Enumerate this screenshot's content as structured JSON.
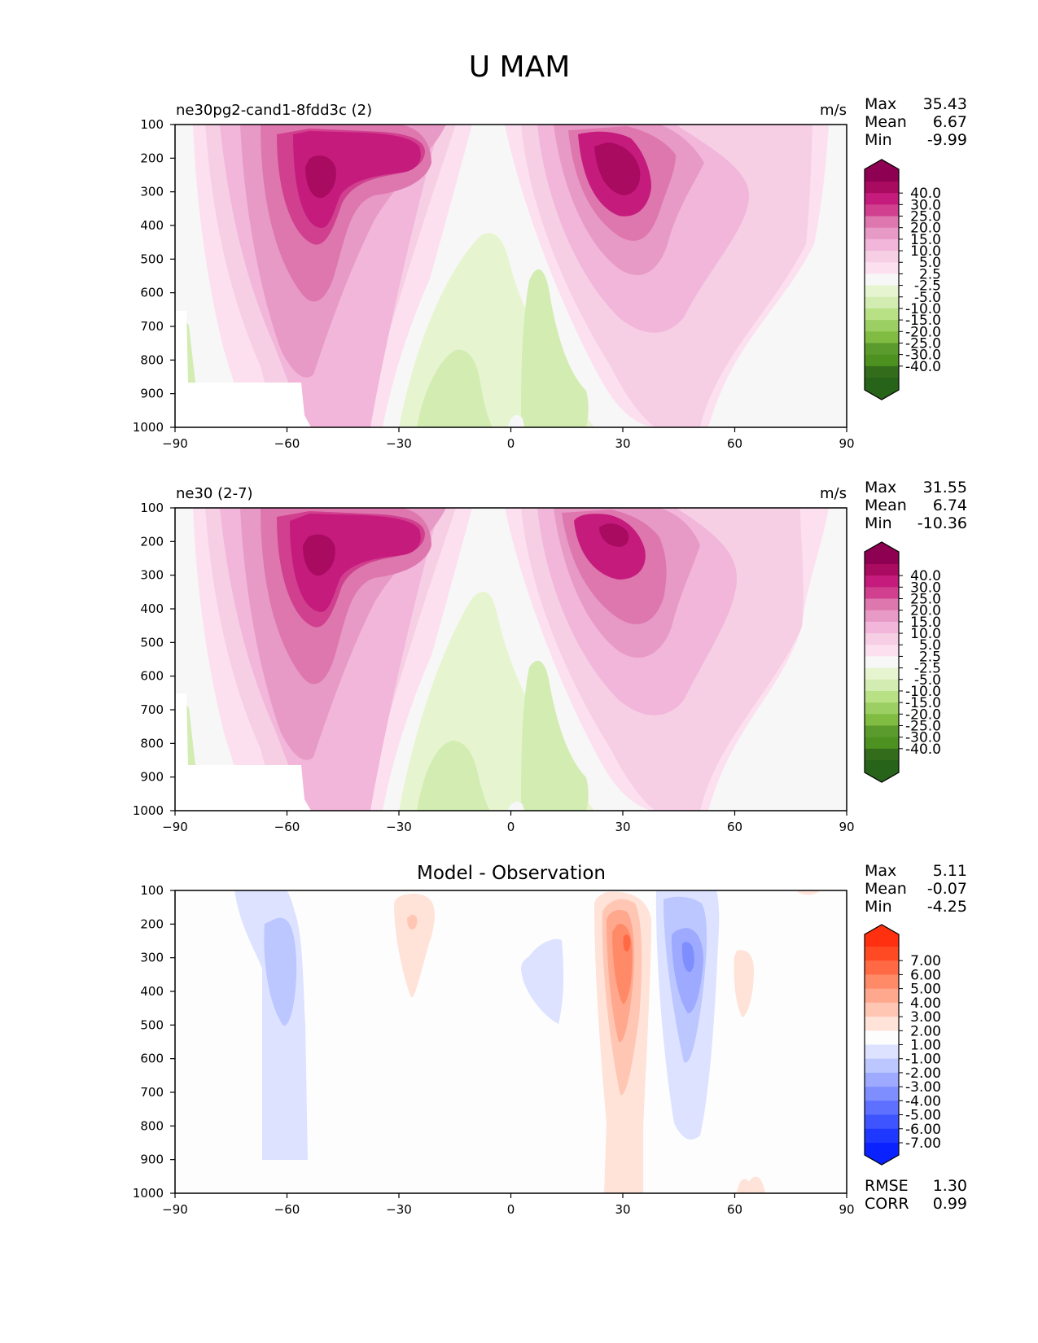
{
  "figure_title": "U MAM",
  "panels": [
    {
      "id": "test",
      "left_title": "ne30pg2-cand1-8fdd3c (2)",
      "center_title": "",
      "units": "m/s",
      "stats": [
        {
          "label": "Max",
          "value": "35.43"
        },
        {
          "label": "Mean",
          "value": "6.67"
        },
        {
          "label": "Min",
          "value": "-9.99"
        }
      ],
      "extra_stats": [],
      "colorbar": {
        "levels": [
          "40.0",
          "30.0",
          "25.0",
          "20.0",
          "15.0",
          "10.0",
          "5.0",
          "2.5",
          "-2.5",
          "-5.0",
          "-10.0",
          "-15.0",
          "-20.0",
          "-25.0",
          "-30.0",
          "-40.0"
        ],
        "colors": [
          "#8e0152",
          "#a90b61",
          "#c51b7d",
          "#d0408f",
          "#de77ae",
          "#e79ac6",
          "#f1b6da",
          "#f6cfe5",
          "#fde0ef",
          "#f7f7f7",
          "#e6f5d0",
          "#d2ecb2",
          "#b8e186",
          "#9bcf63",
          "#7fbc41",
          "#5b9b2e",
          "#4d9221",
          "#336d1b",
          "#276419"
        ]
      }
    },
    {
      "id": "ref",
      "left_title": "ne30 (2-7)",
      "center_title": "",
      "units": "m/s",
      "stats": [
        {
          "label": "Max",
          "value": "31.55"
        },
        {
          "label": "Mean",
          "value": "6.74"
        },
        {
          "label": "Min",
          "value": "-10.36"
        }
      ],
      "extra_stats": [],
      "colorbar": {
        "levels": [
          "40.0",
          "30.0",
          "25.0",
          "20.0",
          "15.0",
          "10.0",
          "5.0",
          "2.5",
          "-2.5",
          "-5.0",
          "-10.0",
          "-15.0",
          "-20.0",
          "-25.0",
          "-30.0",
          "-40.0"
        ],
        "colors": [
          "#8e0152",
          "#a90b61",
          "#c51b7d",
          "#d0408f",
          "#de77ae",
          "#e79ac6",
          "#f1b6da",
          "#f6cfe5",
          "#fde0ef",
          "#f7f7f7",
          "#e6f5d0",
          "#d2ecb2",
          "#b8e186",
          "#9bcf63",
          "#7fbc41",
          "#5b9b2e",
          "#4d9221",
          "#336d1b",
          "#276419"
        ]
      }
    },
    {
      "id": "diff",
      "left_title": "",
      "center_title": "Model - Observation",
      "units": "",
      "stats": [
        {
          "label": "Max",
          "value": "5.11"
        },
        {
          "label": "Mean",
          "value": "-0.07"
        },
        {
          "label": "Min",
          "value": "-4.25"
        }
      ],
      "extra_stats": [
        {
          "label": "RMSE",
          "value": "1.30"
        },
        {
          "label": "CORR",
          "value": "0.99"
        }
      ],
      "colorbar": {
        "levels": [
          "7.00",
          "6.00",
          "5.00",
          "4.00",
          "3.00",
          "2.00",
          "1.00",
          "-1.00",
          "-2.00",
          "-3.00",
          "-4.00",
          "-5.00",
          "-6.00",
          "-7.00"
        ],
        "colors": [
          "#ff3010",
          "#ff4a24",
          "#ff6a44",
          "#ff8a68",
          "#ffa88e",
          "#ffc6b4",
          "#ffe2d8",
          "#fdfdfd",
          "#dce2ff",
          "#bcc6ff",
          "#9daaff",
          "#7e8eff",
          "#5d70ff",
          "#3d54ff",
          "#1f38ff",
          "#0a22ff"
        ]
      }
    }
  ],
  "chart_data": [
    {
      "type": "contourf",
      "title": "ne30pg2-cand1-8fdd3c (2)",
      "xlabel": "",
      "ylabel": "",
      "x_ticks": [
        -90,
        -60,
        -30,
        0,
        30,
        60,
        90
      ],
      "y_ticks": [
        100,
        200,
        300,
        400,
        500,
        600,
        700,
        800,
        900,
        1000
      ],
      "xlim": [
        -90,
        90
      ],
      "ylim": [
        1000,
        100
      ],
      "units": "m/s",
      "features": [
        {
          "name": "southern jet",
          "lat": -50,
          "p": 250,
          "peak": 35
        },
        {
          "name": "northern jet",
          "lat": 28,
          "p": 200,
          "peak": 35
        },
        {
          "name": "tropical easterlies",
          "lat": 0,
          "p": 700,
          "peak": -10
        }
      ]
    },
    {
      "type": "contourf",
      "title": "ne30 (2-7)",
      "xlabel": "",
      "ylabel": "",
      "x_ticks": [
        -90,
        -60,
        -30,
        0,
        30,
        60,
        90
      ],
      "y_ticks": [
        100,
        200,
        300,
        400,
        500,
        600,
        700,
        800,
        900,
        1000
      ],
      "xlim": [
        -90,
        90
      ],
      "ylim": [
        1000,
        100
      ],
      "units": "m/s",
      "features": [
        {
          "name": "southern jet",
          "lat": -50,
          "p": 250,
          "peak": 31
        },
        {
          "name": "northern jet",
          "lat": 28,
          "p": 200,
          "peak": 31
        },
        {
          "name": "tropical easterlies",
          "lat": 0,
          "p": 700,
          "peak": -10
        }
      ]
    },
    {
      "type": "contourf",
      "title": "Model - Observation",
      "xlabel": "",
      "ylabel": "",
      "x_ticks": [
        -90,
        -60,
        -30,
        0,
        30,
        60,
        90
      ],
      "y_ticks": [
        100,
        200,
        300,
        400,
        500,
        600,
        700,
        800,
        900,
        1000
      ],
      "xlim": [
        -90,
        90
      ],
      "ylim": [
        1000,
        100
      ],
      "features": [
        {
          "name": "negative SH",
          "lat": -62,
          "p": 300,
          "peak": -2.5
        },
        {
          "name": "positive",
          "lat": -26,
          "p": 250,
          "peak": 1.5
        },
        {
          "name": "negative tropics",
          "lat": 10,
          "p": 330,
          "peak": -1
        },
        {
          "name": "positive NH",
          "lat": 31,
          "p": 260,
          "peak": 5
        },
        {
          "name": "negative NH",
          "lat": 47,
          "p": 270,
          "peak": -4
        },
        {
          "name": "positive high lat",
          "lat": 63,
          "p": 340,
          "peak": 1
        }
      ]
    }
  ]
}
